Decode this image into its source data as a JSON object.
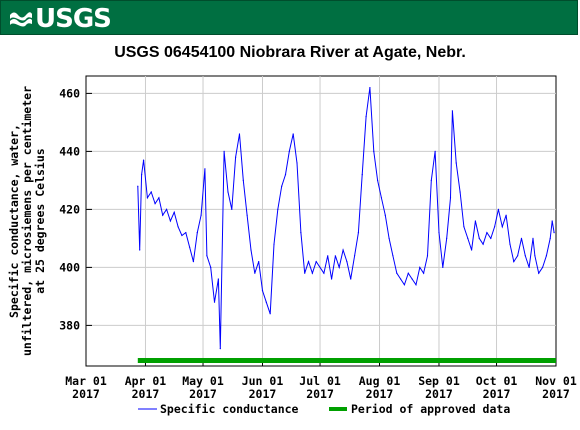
{
  "header": {
    "logo_text": "USGS",
    "logo_icon": "usgs-wave-icon",
    "brand_color": "#006f41"
  },
  "chart_data": {
    "type": "line",
    "title": "USGS 06454100 Niobrara River at Agate, Nebr.",
    "ylabel_lines": [
      "Specific conductance, water,",
      "unfiltered, microsiemens per centimeter",
      "at 25 degrees Celsius"
    ],
    "xlabel": "",
    "ylim": [
      366,
      466
    ],
    "yticks": [
      380,
      400,
      420,
      440,
      460
    ],
    "xlim": [
      "2017-03-01",
      "2017-11-01"
    ],
    "xticks": [
      {
        "date": "2017-03-01",
        "label": [
          "Mar 01",
          "2017"
        ]
      },
      {
        "date": "2017-04-01",
        "label": [
          "Apr 01",
          "2017"
        ]
      },
      {
        "date": "2017-05-01",
        "label": [
          "May 01",
          "2017"
        ]
      },
      {
        "date": "2017-06-01",
        "label": [
          "Jun 01",
          "2017"
        ]
      },
      {
        "date": "2017-07-01",
        "label": [
          "Jul 01",
          "2017"
        ]
      },
      {
        "date": "2017-08-01",
        "label": [
          "Aug 01",
          "2017"
        ]
      },
      {
        "date": "2017-09-01",
        "label": [
          "Sep 01",
          "2017"
        ]
      },
      {
        "date": "2017-10-01",
        "label": [
          "Oct 01",
          "2017"
        ]
      },
      {
        "date": "2017-11-01",
        "label": [
          "Nov 01",
          "2017"
        ]
      }
    ],
    "grid": true,
    "series": [
      {
        "name": "Specific conductance",
        "color": "#0000ff",
        "points": [
          [
            "2017-03-28",
            428
          ],
          [
            "2017-03-29",
            406
          ],
          [
            "2017-03-30",
            432
          ],
          [
            "2017-03-31",
            437
          ],
          [
            "2017-04-02",
            424
          ],
          [
            "2017-04-04",
            426
          ],
          [
            "2017-04-06",
            422
          ],
          [
            "2017-04-08",
            424
          ],
          [
            "2017-04-10",
            418
          ],
          [
            "2017-04-12",
            420
          ],
          [
            "2017-04-14",
            416
          ],
          [
            "2017-04-16",
            419
          ],
          [
            "2017-04-18",
            414
          ],
          [
            "2017-04-20",
            411
          ],
          [
            "2017-04-22",
            412
          ],
          [
            "2017-04-24",
            407
          ],
          [
            "2017-04-26",
            402
          ],
          [
            "2017-04-28",
            412
          ],
          [
            "2017-04-30",
            418
          ],
          [
            "2017-05-02",
            434
          ],
          [
            "2017-05-03",
            404
          ],
          [
            "2017-05-05",
            400
          ],
          [
            "2017-05-07",
            388
          ],
          [
            "2017-05-09",
            396
          ],
          [
            "2017-05-10",
            372
          ],
          [
            "2017-05-12",
            440
          ],
          [
            "2017-05-14",
            426
          ],
          [
            "2017-05-16",
            420
          ],
          [
            "2017-05-18",
            438
          ],
          [
            "2017-05-20",
            446
          ],
          [
            "2017-05-22",
            430
          ],
          [
            "2017-05-24",
            418
          ],
          [
            "2017-05-26",
            406
          ],
          [
            "2017-05-28",
            398
          ],
          [
            "2017-05-30",
            402
          ],
          [
            "2017-06-01",
            392
          ],
          [
            "2017-06-03",
            388
          ],
          [
            "2017-06-05",
            384
          ],
          [
            "2017-06-07",
            408
          ],
          [
            "2017-06-09",
            420
          ],
          [
            "2017-06-11",
            428
          ],
          [
            "2017-06-13",
            432
          ],
          [
            "2017-06-15",
            440
          ],
          [
            "2017-06-17",
            446
          ],
          [
            "2017-06-19",
            436
          ],
          [
            "2017-06-21",
            412
          ],
          [
            "2017-06-23",
            398
          ],
          [
            "2017-06-25",
            402
          ],
          [
            "2017-06-27",
            398
          ],
          [
            "2017-06-29",
            402
          ],
          [
            "2017-07-01",
            400
          ],
          [
            "2017-07-03",
            398
          ],
          [
            "2017-07-05",
            404
          ],
          [
            "2017-07-07",
            396
          ],
          [
            "2017-07-09",
            404
          ],
          [
            "2017-07-11",
            400
          ],
          [
            "2017-07-13",
            406
          ],
          [
            "2017-07-15",
            402
          ],
          [
            "2017-07-17",
            396
          ],
          [
            "2017-07-19",
            404
          ],
          [
            "2017-07-21",
            412
          ],
          [
            "2017-07-23",
            432
          ],
          [
            "2017-07-25",
            452
          ],
          [
            "2017-07-27",
            462
          ],
          [
            "2017-07-29",
            440
          ],
          [
            "2017-07-31",
            430
          ],
          [
            "2017-08-02",
            424
          ],
          [
            "2017-08-04",
            418
          ],
          [
            "2017-08-06",
            410
          ],
          [
            "2017-08-08",
            404
          ],
          [
            "2017-08-10",
            398
          ],
          [
            "2017-08-12",
            396
          ],
          [
            "2017-08-14",
            394
          ],
          [
            "2017-08-16",
            398
          ],
          [
            "2017-08-18",
            396
          ],
          [
            "2017-08-20",
            394
          ],
          [
            "2017-08-22",
            400
          ],
          [
            "2017-08-24",
            398
          ],
          [
            "2017-08-26",
            404
          ],
          [
            "2017-08-28",
            430
          ],
          [
            "2017-08-30",
            440
          ],
          [
            "2017-09-01",
            412
          ],
          [
            "2017-09-03",
            400
          ],
          [
            "2017-09-05",
            410
          ],
          [
            "2017-09-07",
            424
          ],
          [
            "2017-09-08",
            454
          ],
          [
            "2017-09-10",
            436
          ],
          [
            "2017-09-12",
            426
          ],
          [
            "2017-09-14",
            414
          ],
          [
            "2017-09-16",
            410
          ],
          [
            "2017-09-18",
            406
          ],
          [
            "2017-09-20",
            416
          ],
          [
            "2017-09-22",
            410
          ],
          [
            "2017-09-24",
            408
          ],
          [
            "2017-09-26",
            412
          ],
          [
            "2017-09-28",
            410
          ],
          [
            "2017-09-30",
            414
          ],
          [
            "2017-10-02",
            420
          ],
          [
            "2017-10-04",
            414
          ],
          [
            "2017-10-06",
            418
          ],
          [
            "2017-10-08",
            408
          ],
          [
            "2017-10-10",
            402
          ],
          [
            "2017-10-12",
            404
          ],
          [
            "2017-10-14",
            410
          ],
          [
            "2017-10-16",
            404
          ],
          [
            "2017-10-18",
            400
          ],
          [
            "2017-10-20",
            410
          ],
          [
            "2017-10-21",
            404
          ],
          [
            "2017-10-23",
            398
          ],
          [
            "2017-10-25",
            400
          ],
          [
            "2017-10-27",
            404
          ],
          [
            "2017-10-29",
            410
          ],
          [
            "2017-10-30",
            416
          ],
          [
            "2017-10-31",
            412
          ]
        ]
      },
      {
        "name": "Period of approved data",
        "color": "#00a000",
        "range": [
          "2017-03-28",
          "2017-11-01"
        ]
      }
    ],
    "legend_position": "bottom"
  }
}
